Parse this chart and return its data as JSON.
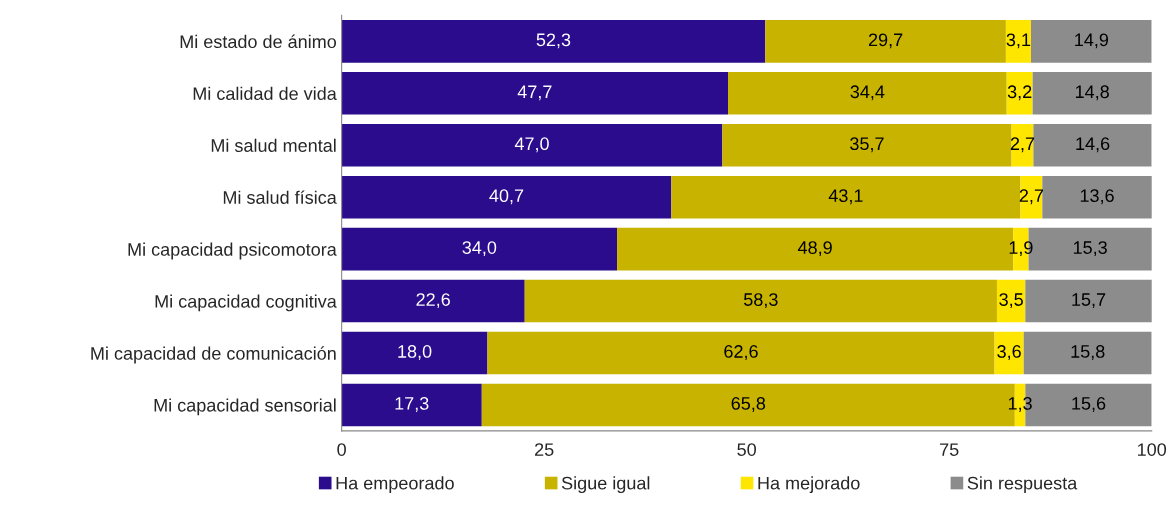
{
  "chart_data": {
    "type": "bar",
    "orientation": "horizontal",
    "stacked": true,
    "categories": [
      "Mi estado de ánimo",
      "Mi calidad de vida",
      "Mi salud mental",
      "Mi salud física",
      "Mi capacidad psicomotora",
      "Mi capacidad cognitiva",
      "Mi capacidad de comunicación",
      "Mi capacidad sensorial"
    ],
    "series": [
      {
        "name": "Ha empeorado",
        "color": "#2a0c8c",
        "values": [
          52.3,
          47.7,
          47.0,
          40.7,
          34.0,
          22.6,
          18.0,
          17.3
        ],
        "value_labels": [
          "52,3",
          "47,7",
          "47,0",
          "40,7",
          "34,0",
          "22,6",
          "18,0",
          "17,3"
        ]
      },
      {
        "name": "Sigue igual",
        "color": "#c8b400",
        "values": [
          29.7,
          34.4,
          35.7,
          43.1,
          48.9,
          58.3,
          62.6,
          65.8
        ],
        "value_labels": [
          "29,7",
          "34,4",
          "35,7",
          "43,1",
          "48,9",
          "58,3",
          "62,6",
          "65,8"
        ]
      },
      {
        "name": "Ha mejorado",
        "color": "#ffe600",
        "values": [
          3.1,
          3.2,
          2.7,
          2.7,
          1.9,
          3.5,
          3.6,
          1.3
        ],
        "value_labels": [
          "3,1",
          "3,2",
          "2,7",
          "2,7",
          "1,9",
          "3,5",
          "3,6",
          "1,3"
        ]
      },
      {
        "name": "Sin respuesta",
        "color": "#8c8c8c",
        "values": [
          14.9,
          14.8,
          14.6,
          13.6,
          15.3,
          15.7,
          15.8,
          15.6
        ],
        "value_labels": [
          "14,9",
          "14,8",
          "14,6",
          "13,6",
          "15,3",
          "15,7",
          "15,8",
          "15,6"
        ]
      }
    ],
    "xlim": [
      0,
      100
    ],
    "xticks": [
      0,
      25,
      50,
      75,
      100
    ],
    "grid": false,
    "legend": "bottom"
  }
}
